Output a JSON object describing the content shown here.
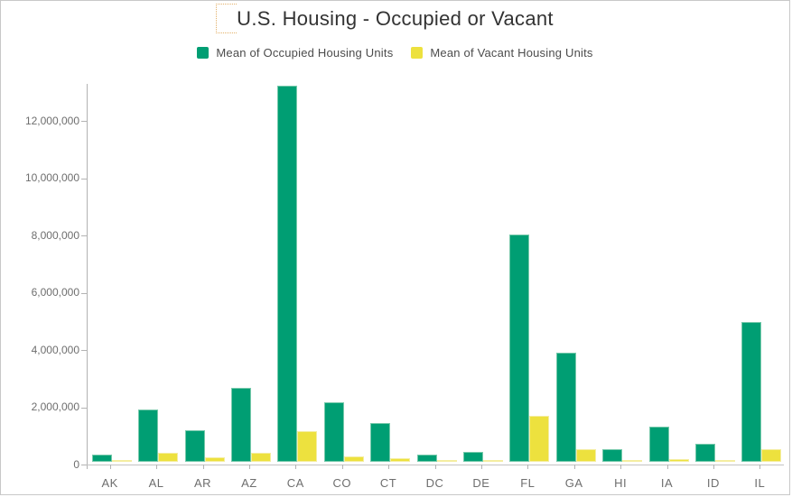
{
  "chart_data": {
    "type": "bar",
    "title": "U.S. Housing - Occupied or Vacant",
    "xlabel": "",
    "ylabel": "",
    "grid": false,
    "legend_position": "top",
    "ylim": [
      0,
      13200000
    ],
    "yticks": [
      0,
      2000000,
      4000000,
      6000000,
      8000000,
      10000000,
      12000000
    ],
    "ytick_labels": [
      "0",
      "2,000,000",
      "4,000,000",
      "6,000,000",
      "8,000,000",
      "10,000,000",
      "12,000,000"
    ],
    "categories": [
      "AK",
      "AL",
      "AR",
      "AZ",
      "CA",
      "CO",
      "CT",
      "DC",
      "DE",
      "FL",
      "GA",
      "HI",
      "IA",
      "ID",
      "IL"
    ],
    "series": [
      {
        "name": "Mean of Occupied Housing Units",
        "key": "occupied",
        "color": "#009e73",
        "edge_color": "#77c9ab",
        "values": [
          240000,
          1840000,
          1100000,
          2580000,
          13130000,
          2090000,
          1360000,
          255000,
          360000,
          7930000,
          3820000,
          430000,
          1240000,
          620000,
          4870000
        ]
      },
      {
        "name": "Mean of Vacant Housing Units",
        "key": "vacant",
        "color": "#ede13e",
        "edge_color": "#f4eda0",
        "values": [
          60000,
          320000,
          150000,
          330000,
          1070000,
          200000,
          130000,
          30000,
          50000,
          1620000,
          450000,
          50000,
          110000,
          60000,
          450000
        ]
      }
    ]
  }
}
